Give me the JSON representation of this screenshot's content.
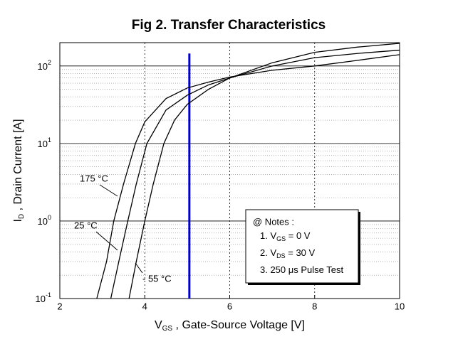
{
  "chart_data": {
    "type": "line",
    "title": "Fig 2.  Transfer Characteristics",
    "x_label": {
      "main": "V",
      "sub": "GS",
      "rest": " , Gate-Source Voltage  [V]"
    },
    "y_label": {
      "main": "I",
      "sub": "D",
      "rest": " , Drain Current  [A]"
    },
    "xlim": [
      2,
      10
    ],
    "xticks": [
      2,
      4,
      6,
      8,
      10
    ],
    "ylim": [
      0.1,
      200
    ],
    "log_y": true,
    "yticks": [
      {
        "value": 0.1,
        "label": "10",
        "exp": "-1"
      },
      {
        "value": 1,
        "label": "10",
        "exp": "0"
      },
      {
        "value": 10,
        "label": "10",
        "exp": "1"
      },
      {
        "value": 100,
        "label": "10",
        "exp": "2"
      }
    ],
    "grid": true,
    "minor_grid": true,
    "series": [
      {
        "name": "175 °C",
        "color": "#000000",
        "x": [
          2.87,
          3.1,
          3.27,
          3.5,
          3.78,
          4,
          4.5,
          5,
          5.5,
          6,
          7,
          8,
          9,
          10
        ],
        "values": [
          0.1,
          0.3,
          1,
          3,
          10,
          19,
          38,
          52,
          62,
          72,
          88,
          100,
          118,
          140
        ]
      },
      {
        "name": "25 °C",
        "color": "#000000",
        "x": [
          3.2,
          3.4,
          3.6,
          3.8,
          4.05,
          4.5,
          5,
          5.5,
          6,
          7,
          8,
          9,
          10
        ],
        "values": [
          0.1,
          0.32,
          1,
          3,
          10,
          27,
          42,
          57,
          70,
          100,
          128,
          145,
          160
        ]
      },
      {
        "name": "- 55 °C",
        "color": "#000000",
        "x": [
          3.63,
          3.8,
          4.0,
          4.2,
          4.45,
          4.7,
          5,
          5.5,
          6,
          7,
          8,
          9,
          10
        ],
        "values": [
          0.1,
          0.3,
          1,
          3,
          10,
          20,
          32,
          50,
          70,
          110,
          150,
          175,
          196
        ]
      }
    ],
    "vline": {
      "x": 5.05,
      "y": [
        0.1,
        145
      ],
      "color": "#0000cc"
    },
    "notes": {
      "title": "@ Notes :",
      "lines": [
        {
          "pre": "1. V",
          "sub": "GS",
          "post": " = 0 V"
        },
        {
          "pre": "2. V",
          "sub": "DS",
          "post": " = 30 V"
        },
        {
          "pre": "3. 250 μs Pulse Test",
          "sub": "",
          "post": ""
        }
      ]
    }
  }
}
